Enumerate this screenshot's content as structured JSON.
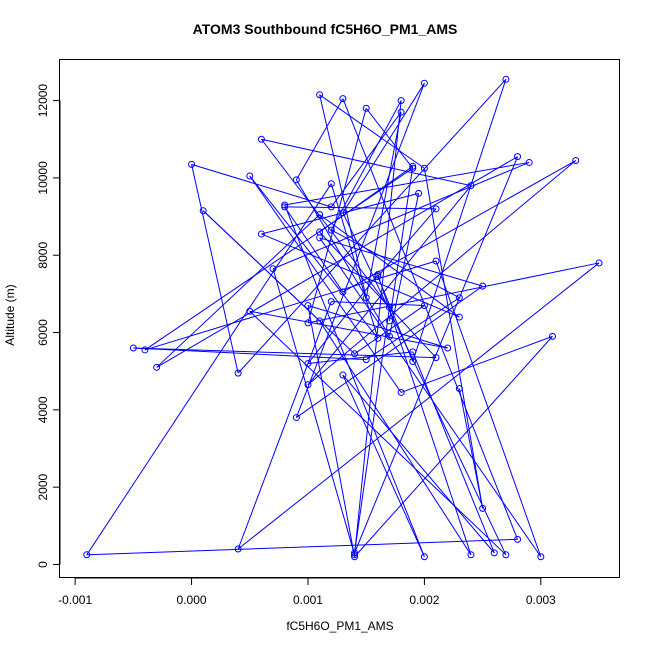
{
  "chart_data": {
    "type": "scatter",
    "title": "ATOM3 Southbound fC5H6O_PM1_AMS",
    "xlabel": "fC5H6O_PM1_AMS",
    "ylabel": "Altitude (m)",
    "xlim": [
      -0.00113,
      0.00368
    ],
    "ylim": [
      -350,
      13050
    ],
    "x_ticks": [
      -0.001,
      0.0,
      0.001,
      0.002,
      0.003
    ],
    "x_tick_labels": [
      "-0.001",
      "0.000",
      "0.001",
      "0.002",
      "0.003"
    ],
    "y_ticks": [
      0,
      2000,
      4000,
      6000,
      8000,
      10000,
      12000
    ],
    "y_tick_labels": [
      "0",
      "2000",
      "4000",
      "6000",
      "8000",
      "10000",
      "12000"
    ],
    "grid": false,
    "markers": "open circles connected by lines",
    "color": "#0000ff",
    "series": [
      {
        "x": [
          0.0023,
          0.0025,
          0.002,
          0.0011,
          0.0015,
          0.0018,
          0.0012,
          0.0,
          0.0004,
          0.0027,
          0.0019,
          0.0016,
          0.0021,
          0.0008,
          0.0013,
          0.0033,
          0.001,
          0.0024,
          0.0006,
          0.0017,
          0.0014,
          0.0028,
          -0.0003,
          0.0011,
          0.0023,
          0.0006,
          0.00195,
          0.0017,
          0.0009,
          0.0013,
          0.0028,
          -0.0009,
          0.0012,
          0.0016,
          0.0005,
          0.0018,
          0.0031,
          0.0014,
          0.001,
          0.0022,
          0.0005,
          0.0027,
          0.0013,
          0.002,
          0.0009,
          0.0025,
          0.0011,
          0.003,
          0.0021,
          -0.0004,
          0.0019,
          0.0015,
          0.001,
          0.0035,
          0.0004,
          0.0012,
          0.002,
          0.0014,
          0.0001,
          0.0011,
          0.0024,
          0.0016,
          0.001,
          0.0019,
          0.0026,
          0.0013,
          0.002,
          0.0008,
          0.0029,
          0.0007,
          0.0014,
          0.0018,
          0.0012,
          0.0023,
          0.0015,
          -0.0005,
          0.0021,
          0.0011,
          0.0019,
          0.0017
        ],
        "y": [
          4550,
          1450,
          10250,
          12150,
          6900,
          11700,
          9250,
          10350,
          4950,
          12550,
          5250,
          7450,
          9200,
          9250,
          7050,
          10450,
          4650,
          9800,
          11000,
          6650,
          300,
          10550,
          5100,
          9050,
          6400,
          8550,
          9600,
          5900,
          9950,
          12050,
          650,
          250,
          9850,
          5850,
          10050,
          4450,
          5900,
          200,
          6700,
          5600,
          6550,
          250,
          9100,
          12450,
          3800,
          7200,
          8450,
          200,
          7850,
          5550,
          10250,
          11800,
          6250,
          7800,
          400,
          6800,
          6700,
          5450,
          9150,
          6300,
          250,
          7500,
          5200,
          5500,
          300,
          4900,
          200,
          9300,
          10400,
          7650,
          250,
          12000,
          8650,
          6900,
          5300,
          5600,
          5350,
          8600,
          10300,
          6300
        ]
      }
    ]
  }
}
